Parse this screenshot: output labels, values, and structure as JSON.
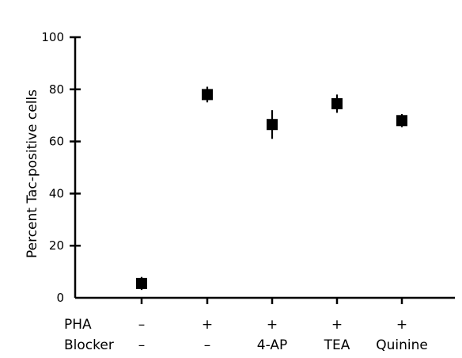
{
  "chart_data": {
    "type": "scatter",
    "title": "",
    "xlabel": "",
    "ylabel": "Percent Tac-positive cells",
    "ylim": [
      0,
      100
    ],
    "yticks": [
      0,
      20,
      40,
      60,
      80,
      100
    ],
    "grid": false,
    "legend": "none",
    "row_labels": [
      "PHA",
      "Blocker"
    ],
    "conditions": [
      {
        "pha": "–",
        "blocker": "–"
      },
      {
        "pha": "+",
        "blocker": "–"
      },
      {
        "pha": "+",
        "blocker": "4-AP"
      },
      {
        "pha": "+",
        "blocker": "TEA"
      },
      {
        "pha": "+",
        "blocker": "Quinine"
      }
    ],
    "values": [
      5.5,
      78,
      66.5,
      74.5,
      68
    ],
    "errors": [
      2.5,
      3,
      5.5,
      3.5,
      2.5
    ]
  }
}
